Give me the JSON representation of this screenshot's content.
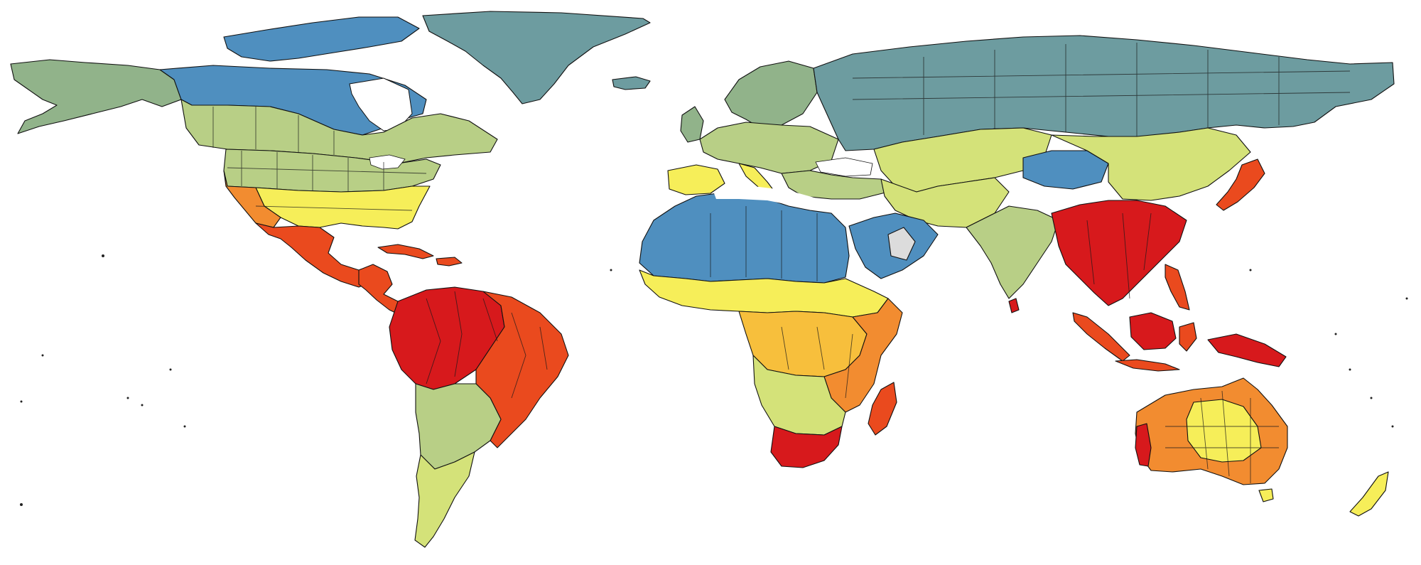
{
  "map": {
    "kind": "choropleth world map",
    "projection": "equirectangular",
    "legend": "none",
    "title": "",
    "palette": {
      "very_high": "#d7191c",
      "high": "#ea4a1e",
      "mid_high": "#f28c30",
      "mid": "#f7bf3c",
      "mid_low": "#f6ee59",
      "low_mid": "#d4e279",
      "low": "#b8cf86",
      "lower": "#91b38a",
      "lowest": "#6d9ca0",
      "minimum": "#4f8fbf",
      "no_data": "#dcdcdc"
    },
    "regions": [
      {
        "id": "greenland",
        "level": "lowest"
      },
      {
        "id": "canada-north",
        "level": "minimum"
      },
      {
        "id": "alaska",
        "level": "lower"
      },
      {
        "id": "canada-south",
        "level": "low"
      },
      {
        "id": "usa-north",
        "level": "low"
      },
      {
        "id": "usa-south",
        "level": "mid_low"
      },
      {
        "id": "usa-southwest",
        "level": "mid_high"
      },
      {
        "id": "mexico",
        "level": "high"
      },
      {
        "id": "central-america",
        "level": "high"
      },
      {
        "id": "caribbean",
        "level": "high"
      },
      {
        "id": "amazon",
        "level": "very_high"
      },
      {
        "id": "brazil-east",
        "level": "high"
      },
      {
        "id": "south-america-south",
        "level": "low"
      },
      {
        "id": "patagonia",
        "level": "low_mid"
      },
      {
        "id": "iceland",
        "level": "lowest"
      },
      {
        "id": "europe-north",
        "level": "lower"
      },
      {
        "id": "europe-central",
        "level": "low"
      },
      {
        "id": "iberia",
        "level": "mid_low"
      },
      {
        "id": "russia",
        "level": "lowest"
      },
      {
        "id": "north-africa",
        "level": "minimum"
      },
      {
        "id": "arabia",
        "level": "minimum"
      },
      {
        "id": "arabia-gap",
        "level": "no_data"
      },
      {
        "id": "sahel",
        "level": "mid_low"
      },
      {
        "id": "central-africa",
        "level": "mid"
      },
      {
        "id": "east-africa",
        "level": "mid_high"
      },
      {
        "id": "southern-africa",
        "level": "low_mid"
      },
      {
        "id": "south-africa",
        "level": "very_high"
      },
      {
        "id": "madagascar",
        "level": "high"
      },
      {
        "id": "central-asia",
        "level": "low_mid"
      },
      {
        "id": "mongolia",
        "level": "minimum"
      },
      {
        "id": "india",
        "level": "low"
      },
      {
        "id": "south-china-se-asia",
        "level": "very_high"
      },
      {
        "id": "china-north",
        "level": "low_mid"
      },
      {
        "id": "japan",
        "level": "high"
      },
      {
        "id": "indonesia",
        "level": "high"
      },
      {
        "id": "new-guinea",
        "level": "very_high"
      },
      {
        "id": "australia-interior",
        "level": "mid_low"
      },
      {
        "id": "australia-coast",
        "level": "mid_high"
      },
      {
        "id": "new-zealand",
        "level": "mid_low"
      }
    ]
  }
}
